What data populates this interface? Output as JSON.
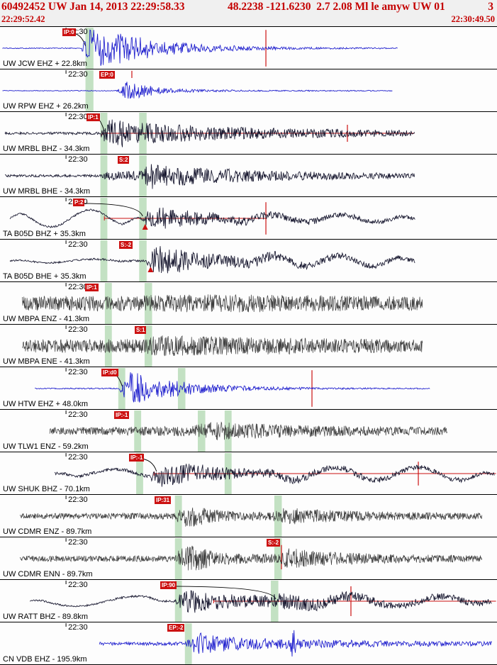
{
  "header": {
    "line1_left": "60492452 UW Jan 14, 2013 22:29:58.33",
    "line1_mid": "48.2238 -121.6230  2.7 2.08 Ml le amyw UW 01",
    "line1_right": "3",
    "start_time": "22:29:52.42",
    "end_time": "22:30:49.50"
  },
  "colors": {
    "blue": "#1c1ccd",
    "navy": "#16162e",
    "gray": "#3e3e3e",
    "red": "#cc1111",
    "band": "#b9dcb9",
    "header_text": "#c40000"
  },
  "tick_fraction": 0.1328,
  "traces": [
    {
      "label": "UW JCW EHZ + 22.8km",
      "tick": "22:30",
      "color": "blue",
      "seed": 101,
      "step": 0.9,
      "xr": [
        0.005,
        0.8
      ],
      "env": [
        [
          0.005,
          0.7
        ],
        [
          0.163,
          0.7
        ],
        [
          0.17,
          12
        ],
        [
          0.176,
          27
        ],
        [
          0.21,
          26
        ],
        [
          0.26,
          19
        ],
        [
          0.32,
          11
        ],
        [
          0.4,
          6
        ],
        [
          0.5,
          3
        ],
        [
          0.62,
          1.5
        ],
        [
          0.8,
          0.8
        ]
      ],
      "lp": [],
      "flag": {
        "text": "IP:0",
        "x": 0.1255
      },
      "bands": [
        [
          0.172,
          0.188
        ]
      ],
      "vlines": [
        {
          "x": 0.535,
          "y0": 0.07,
          "y1": 0.93
        }
      ],
      "hline": null,
      "leader": {
        "x1": 0.145,
        "x2": 0.172
      },
      "tri": null
    },
    {
      "label": "UW RPW EHZ + 26.2km",
      "tick": "22:30",
      "color": "blue",
      "seed": 102,
      "step": 0.9,
      "xr": [
        0.005,
        0.79
      ],
      "env": [
        [
          0.005,
          0.5
        ],
        [
          0.232,
          0.5
        ],
        [
          0.242,
          5
        ],
        [
          0.252,
          13
        ],
        [
          0.285,
          9
        ],
        [
          0.33,
          4
        ],
        [
          0.4,
          1.8
        ],
        [
          0.5,
          1
        ],
        [
          0.79,
          0.6
        ]
      ],
      "lp": [],
      "flag": {
        "text": "EP:0",
        "x": 0.1997
      },
      "bands": [
        [
          0.172,
          0.188
        ]
      ],
      "vlines": [
        {
          "x": 0.2653,
          "y0": 0.03,
          "y1": 0.2
        }
      ],
      "hline": null,
      "leader": null,
      "tri": null
    },
    {
      "label": "UW MRBL BHZ - 34.3km",
      "tick": "22:30",
      "color": "navy",
      "seed": 103,
      "step": 0.8,
      "xr": [
        0.01,
        0.835
      ],
      "env": [
        [
          0.01,
          1.6
        ],
        [
          0.2,
          1.8
        ],
        [
          0.208,
          10
        ],
        [
          0.225,
          22
        ],
        [
          0.27,
          17
        ],
        [
          0.33,
          13
        ],
        [
          0.42,
          10
        ],
        [
          0.55,
          7.5
        ],
        [
          0.7,
          5.5
        ],
        [
          0.835,
          4
        ]
      ],
      "lp": [],
      "flag": {
        "text": "IP:1",
        "x": 0.174
      },
      "bands": [
        [
          0.202,
          0.216
        ],
        [
          0.28,
          0.295
        ]
      ],
      "vlines": [
        {
          "x": 0.699,
          "y0": 0.3,
          "y1": 0.7
        }
      ],
      "hline": [
        0.205,
        0.834
      ],
      "leader": {
        "x1": 0.195,
        "x2": 0.21
      },
      "tri": null
    },
    {
      "label": "UW MRBL BHE - 34.3km",
      "tick": "22:30",
      "color": "navy",
      "seed": 104,
      "step": 0.8,
      "xr": [
        0.01,
        0.835
      ],
      "env": [
        [
          0.01,
          1.6
        ],
        [
          0.205,
          1.8
        ],
        [
          0.213,
          6
        ],
        [
          0.25,
          6.5
        ],
        [
          0.287,
          7
        ],
        [
          0.297,
          20
        ],
        [
          0.34,
          16
        ],
        [
          0.42,
          11
        ],
        [
          0.55,
          7
        ],
        [
          0.7,
          5
        ],
        [
          0.835,
          3.5
        ]
      ],
      "lp": [],
      "flag": {
        "text": "S:2",
        "x": 0.2368
      },
      "bands": [
        [
          0.202,
          0.216
        ],
        [
          0.28,
          0.295
        ]
      ],
      "vlines": [],
      "hline": null,
      "leader": null,
      "tri": null
    },
    {
      "label": "TA B05D BHZ + 35.3km",
      "tick": "22:30",
      "color": "navy",
      "seed": 105,
      "step": 0.8,
      "xr": [
        0.02,
        0.835
      ],
      "env": [
        [
          0.02,
          1.2
        ],
        [
          0.283,
          1.5
        ],
        [
          0.292,
          8
        ],
        [
          0.303,
          18
        ],
        [
          0.35,
          13
        ],
        [
          0.43,
          8
        ],
        [
          0.55,
          5
        ],
        [
          0.7,
          3.5
        ],
        [
          0.835,
          2.5
        ]
      ],
      "lp": [
        {
          "x0": 0.02,
          "x1": 0.27,
          "amp": 12,
          "per": 112,
          "ph": 0.7
        },
        {
          "x0": 0.42,
          "x1": 0.835,
          "amp": 5,
          "per": 98,
          "ph": 2.1
        }
      ],
      "flag": {
        "text": "P:2",
        "x": 0.1469
      },
      "bands": [
        [
          0.202,
          0.216
        ],
        [
          0.28,
          0.295
        ]
      ],
      "vlines": [
        {
          "x": 0.535,
          "y0": 0.12,
          "y1": 0.88
        }
      ],
      "hline": [
        0.21,
        0.537
      ],
      "leader": {
        "x1": 0.168,
        "x2": 0.287
      },
      "tri": 0.292
    },
    {
      "label": "TA B05D BHE + 35.3km",
      "tick": "22:30",
      "color": "navy",
      "seed": 106,
      "step": 0.8,
      "xr": [
        0.02,
        0.835
      ],
      "env": [
        [
          0.02,
          1.1
        ],
        [
          0.292,
          1.5
        ],
        [
          0.3,
          9
        ],
        [
          0.315,
          22
        ],
        [
          0.37,
          15
        ],
        [
          0.45,
          9
        ],
        [
          0.57,
          6
        ],
        [
          0.7,
          4.5
        ],
        [
          0.835,
          3
        ]
      ],
      "lp": [
        {
          "x0": 0.02,
          "x1": 0.26,
          "amp": 2.5,
          "per": 125,
          "ph": 1.2
        },
        {
          "x0": 0.47,
          "x1": 0.835,
          "amp": 7,
          "per": 92,
          "ph": 0.3
        }
      ],
      "flag": {
        "text": "S:-2",
        "x": 0.2397
      },
      "bands": [
        [
          0.202,
          0.216
        ],
        [
          0.28,
          0.295
        ]
      ],
      "vlines": [],
      "hline": null,
      "leader": null,
      "tri": 0.303
    },
    {
      "label": "UW MBPA ENZ - 41.3km",
      "tick": "22:30",
      "color": "gray",
      "seed": 107,
      "step": 0.55,
      "xr": [
        0.045,
        0.85
      ],
      "env": [
        [
          0.045,
          10
        ],
        [
          0.28,
          11
        ],
        [
          0.34,
          13
        ],
        [
          0.5,
          12.5
        ],
        [
          0.7,
          11
        ],
        [
          0.85,
          10
        ]
      ],
      "lp": [],
      "flag": {
        "text": "IP:1",
        "x": 0.1712
      },
      "bands": [
        [
          0.211,
          0.225
        ],
        [
          0.291,
          0.306
        ]
      ],
      "vlines": [],
      "hline": null,
      "leader": null,
      "tri": null
    },
    {
      "label": "UW MBPA ENE - 41.3km",
      "tick": "22:30",
      "color": "gray",
      "seed": 108,
      "step": 0.55,
      "xr": [
        0.045,
        0.85
      ],
      "env": [
        [
          0.045,
          9
        ],
        [
          0.29,
          10
        ],
        [
          0.315,
          15
        ],
        [
          0.42,
          13.5
        ],
        [
          0.55,
          12
        ],
        [
          0.7,
          10.5
        ],
        [
          0.85,
          9
        ]
      ],
      "lp": [],
      "flag": {
        "text": "S:1",
        "x": 0.271
      },
      "bands": [
        [
          0.211,
          0.225
        ],
        [
          0.291,
          0.306
        ]
      ],
      "vlines": [],
      "hline": null,
      "leader": null,
      "tri": null
    },
    {
      "label": "UW HTW EHZ + 48.0km",
      "tick": "22:30",
      "color": "blue",
      "seed": 109,
      "step": 0.9,
      "xr": [
        0.07,
        0.865
      ],
      "env": [
        [
          0.07,
          0.8
        ],
        [
          0.24,
          0.9
        ],
        [
          0.249,
          14
        ],
        [
          0.258,
          25
        ],
        [
          0.3,
          18
        ],
        [
          0.36,
          10
        ],
        [
          0.44,
          5
        ],
        [
          0.54,
          2.5
        ],
        [
          0.65,
          1.3
        ],
        [
          0.865,
          0.8
        ]
      ],
      "lp": [],
      "flag": {
        "text": "IP:d0",
        "x": 0.204
      },
      "bands": [
        [
          0.238,
          0.252
        ],
        [
          0.358,
          0.373
        ]
      ],
      "vlines": [
        {
          "x": 0.6277,
          "y0": 0.07,
          "y1": 0.93
        }
      ],
      "hline": null,
      "leader": {
        "x1": 0.225,
        "x2": 0.246
      },
      "tri": null
    },
    {
      "label": "UW TLW1 ENZ - 59.2km",
      "tick": "22:30",
      "color": "gray",
      "seed": 110,
      "step": 0.55,
      "xr": [
        0.1,
        0.9
      ],
      "env": [
        [
          0.1,
          5
        ],
        [
          0.26,
          6
        ],
        [
          0.38,
          7.5
        ],
        [
          0.43,
          13
        ],
        [
          0.5,
          11
        ],
        [
          0.6,
          8.5
        ],
        [
          0.72,
          7
        ],
        [
          0.9,
          5.5
        ]
      ],
      "lp": [],
      "flag": {
        "text": "IP:-1",
        "x": 0.2297
      },
      "bands": [
        [
          0.27,
          0.284
        ],
        [
          0.398,
          0.413
        ],
        [
          0.452,
          0.466
        ]
      ],
      "vlines": [],
      "hline": null,
      "leader": null,
      "tri": null
    },
    {
      "label": "UW SHUK BHZ - 70.1km",
      "tick": "22:30",
      "color": "navy",
      "seed": 111,
      "step": 0.8,
      "xr": [
        0.11,
        0.995
      ],
      "env": [
        [
          0.11,
          2
        ],
        [
          0.3,
          2.5
        ],
        [
          0.313,
          10
        ],
        [
          0.335,
          15
        ],
        [
          0.4,
          11
        ],
        [
          0.5,
          7
        ],
        [
          0.62,
          5
        ],
        [
          0.8,
          3.5
        ],
        [
          0.995,
          3
        ]
      ],
      "lp": [
        {
          "x0": 0.13,
          "x1": 0.42,
          "amp": 6,
          "per": 132,
          "ph": 0.2
        },
        {
          "x0": 0.52,
          "x1": 0.995,
          "amp": 9,
          "per": 118,
          "ph": 1.6
        }
      ],
      "flag": {
        "text": "IP:-1",
        "x": 0.2596
      },
      "bands": [
        [
          0.274,
          0.288
        ],
        [
          0.452,
          0.466
        ]
      ],
      "vlines": [
        {
          "x": 0.8417,
          "y0": 0.22,
          "y1": 0.78
        }
      ],
      "hline": [
        0.31,
        0.998
      ],
      "leader": {
        "x1": 0.28,
        "x2": 0.315
      },
      "tri": null
    },
    {
      "label": "UW CDMR ENZ - 89.7km",
      "tick": "22:30",
      "color": "gray",
      "seed": 112,
      "step": 0.55,
      "xr": [
        0.04,
        0.97
      ],
      "env": [
        [
          0.04,
          4
        ],
        [
          0.352,
          4.5
        ],
        [
          0.362,
          12
        ],
        [
          0.382,
          17
        ],
        [
          0.43,
          9
        ],
        [
          0.5,
          6.5
        ],
        [
          0.552,
          6.5
        ],
        [
          0.572,
          13
        ],
        [
          0.62,
          9.5
        ],
        [
          0.72,
          7
        ],
        [
          0.85,
          5.5
        ],
        [
          0.97,
          4.5
        ]
      ],
      "lp": [],
      "flag": {
        "text": "IP:31",
        "x": 0.311
      },
      "bands": [
        [
          0.352,
          0.366
        ],
        [
          0.552,
          0.567
        ]
      ],
      "vlines": [],
      "hline": null,
      "leader": null,
      "tri": null
    },
    {
      "label": "UW CDMR ENN - 89.7km",
      "tick": "22:30",
      "color": "gray",
      "seed": 113,
      "step": 0.55,
      "xr": [
        0.04,
        0.97
      ],
      "env": [
        [
          0.04,
          4
        ],
        [
          0.352,
          4.5
        ],
        [
          0.362,
          14
        ],
        [
          0.385,
          19
        ],
        [
          0.44,
          9
        ],
        [
          0.51,
          6.5
        ],
        [
          0.562,
          7
        ],
        [
          0.582,
          15
        ],
        [
          0.64,
          10.5
        ],
        [
          0.75,
          7
        ],
        [
          0.87,
          5.5
        ],
        [
          0.97,
          4.5
        ]
      ],
      "lp": [],
      "flag": {
        "text": "S:-2",
        "x": 0.5364
      },
      "bands": [
        [
          0.352,
          0.366
        ],
        [
          0.552,
          0.567
        ]
      ],
      "vlines": [
        {
          "x": 0.5663,
          "y0": 0.18,
          "y1": 0.75
        }
      ],
      "hline": null,
      "leader": null,
      "tri": null
    },
    {
      "label": "UW RATT BHZ - 89.8km",
      "tick": "22:30",
      "color": "navy",
      "seed": 114,
      "step": 0.8,
      "xr": [
        0.06,
        0.99
      ],
      "env": [
        [
          0.06,
          1.1
        ],
        [
          0.352,
          1.5
        ],
        [
          0.362,
          10
        ],
        [
          0.382,
          18
        ],
        [
          0.43,
          12
        ],
        [
          0.5,
          9
        ],
        [
          0.548,
          9
        ],
        [
          0.565,
          13
        ],
        [
          0.62,
          9.5
        ],
        [
          0.72,
          6.5
        ],
        [
          0.85,
          5
        ],
        [
          0.99,
          4
        ]
      ],
      "lp": [
        {
          "x0": 0.06,
          "x1": 0.33,
          "amp": 7,
          "per": 175,
          "ph": 0.9
        },
        {
          "x0": 0.58,
          "x1": 0.99,
          "amp": 6.5,
          "per": 128,
          "ph": 2.4
        }
      ],
      "flag": {
        "text": "IP:90",
        "x": 0.3224
      },
      "bands": [
        [
          0.352,
          0.366
        ],
        [
          0.545,
          0.56
        ]
      ],
      "vlines": [
        {
          "x": 0.7061,
          "y0": 0.15,
          "y1": 0.85
        }
      ],
      "hline": [
        0.43,
        0.998
      ],
      "leader": {
        "x1": 0.345,
        "x2": 0.555
      },
      "tri": null
    },
    {
      "label": "CN VDB EHZ - 195.9km",
      "tick": "22:30",
      "color": "blue",
      "seed": 115,
      "step": 0.9,
      "xr": [
        0.2,
        0.99
      ],
      "env": [
        [
          0.2,
          2.2
        ],
        [
          0.372,
          2.5
        ],
        [
          0.382,
          10
        ],
        [
          0.397,
          16
        ],
        [
          0.45,
          11
        ],
        [
          0.52,
          8
        ],
        [
          0.583,
          7
        ],
        [
          0.59,
          26
        ],
        [
          0.597,
          7
        ],
        [
          0.66,
          5.5
        ],
        [
          0.8,
          4
        ],
        [
          0.99,
          3.2
        ]
      ],
      "lp": [],
      "flag": {
        "text": "EP:-2",
        "x": 0.3367
      },
      "bands": [
        [
          0.372,
          0.386
        ]
      ],
      "vlines": [],
      "hline": null,
      "leader": null,
      "tri": null
    }
  ]
}
